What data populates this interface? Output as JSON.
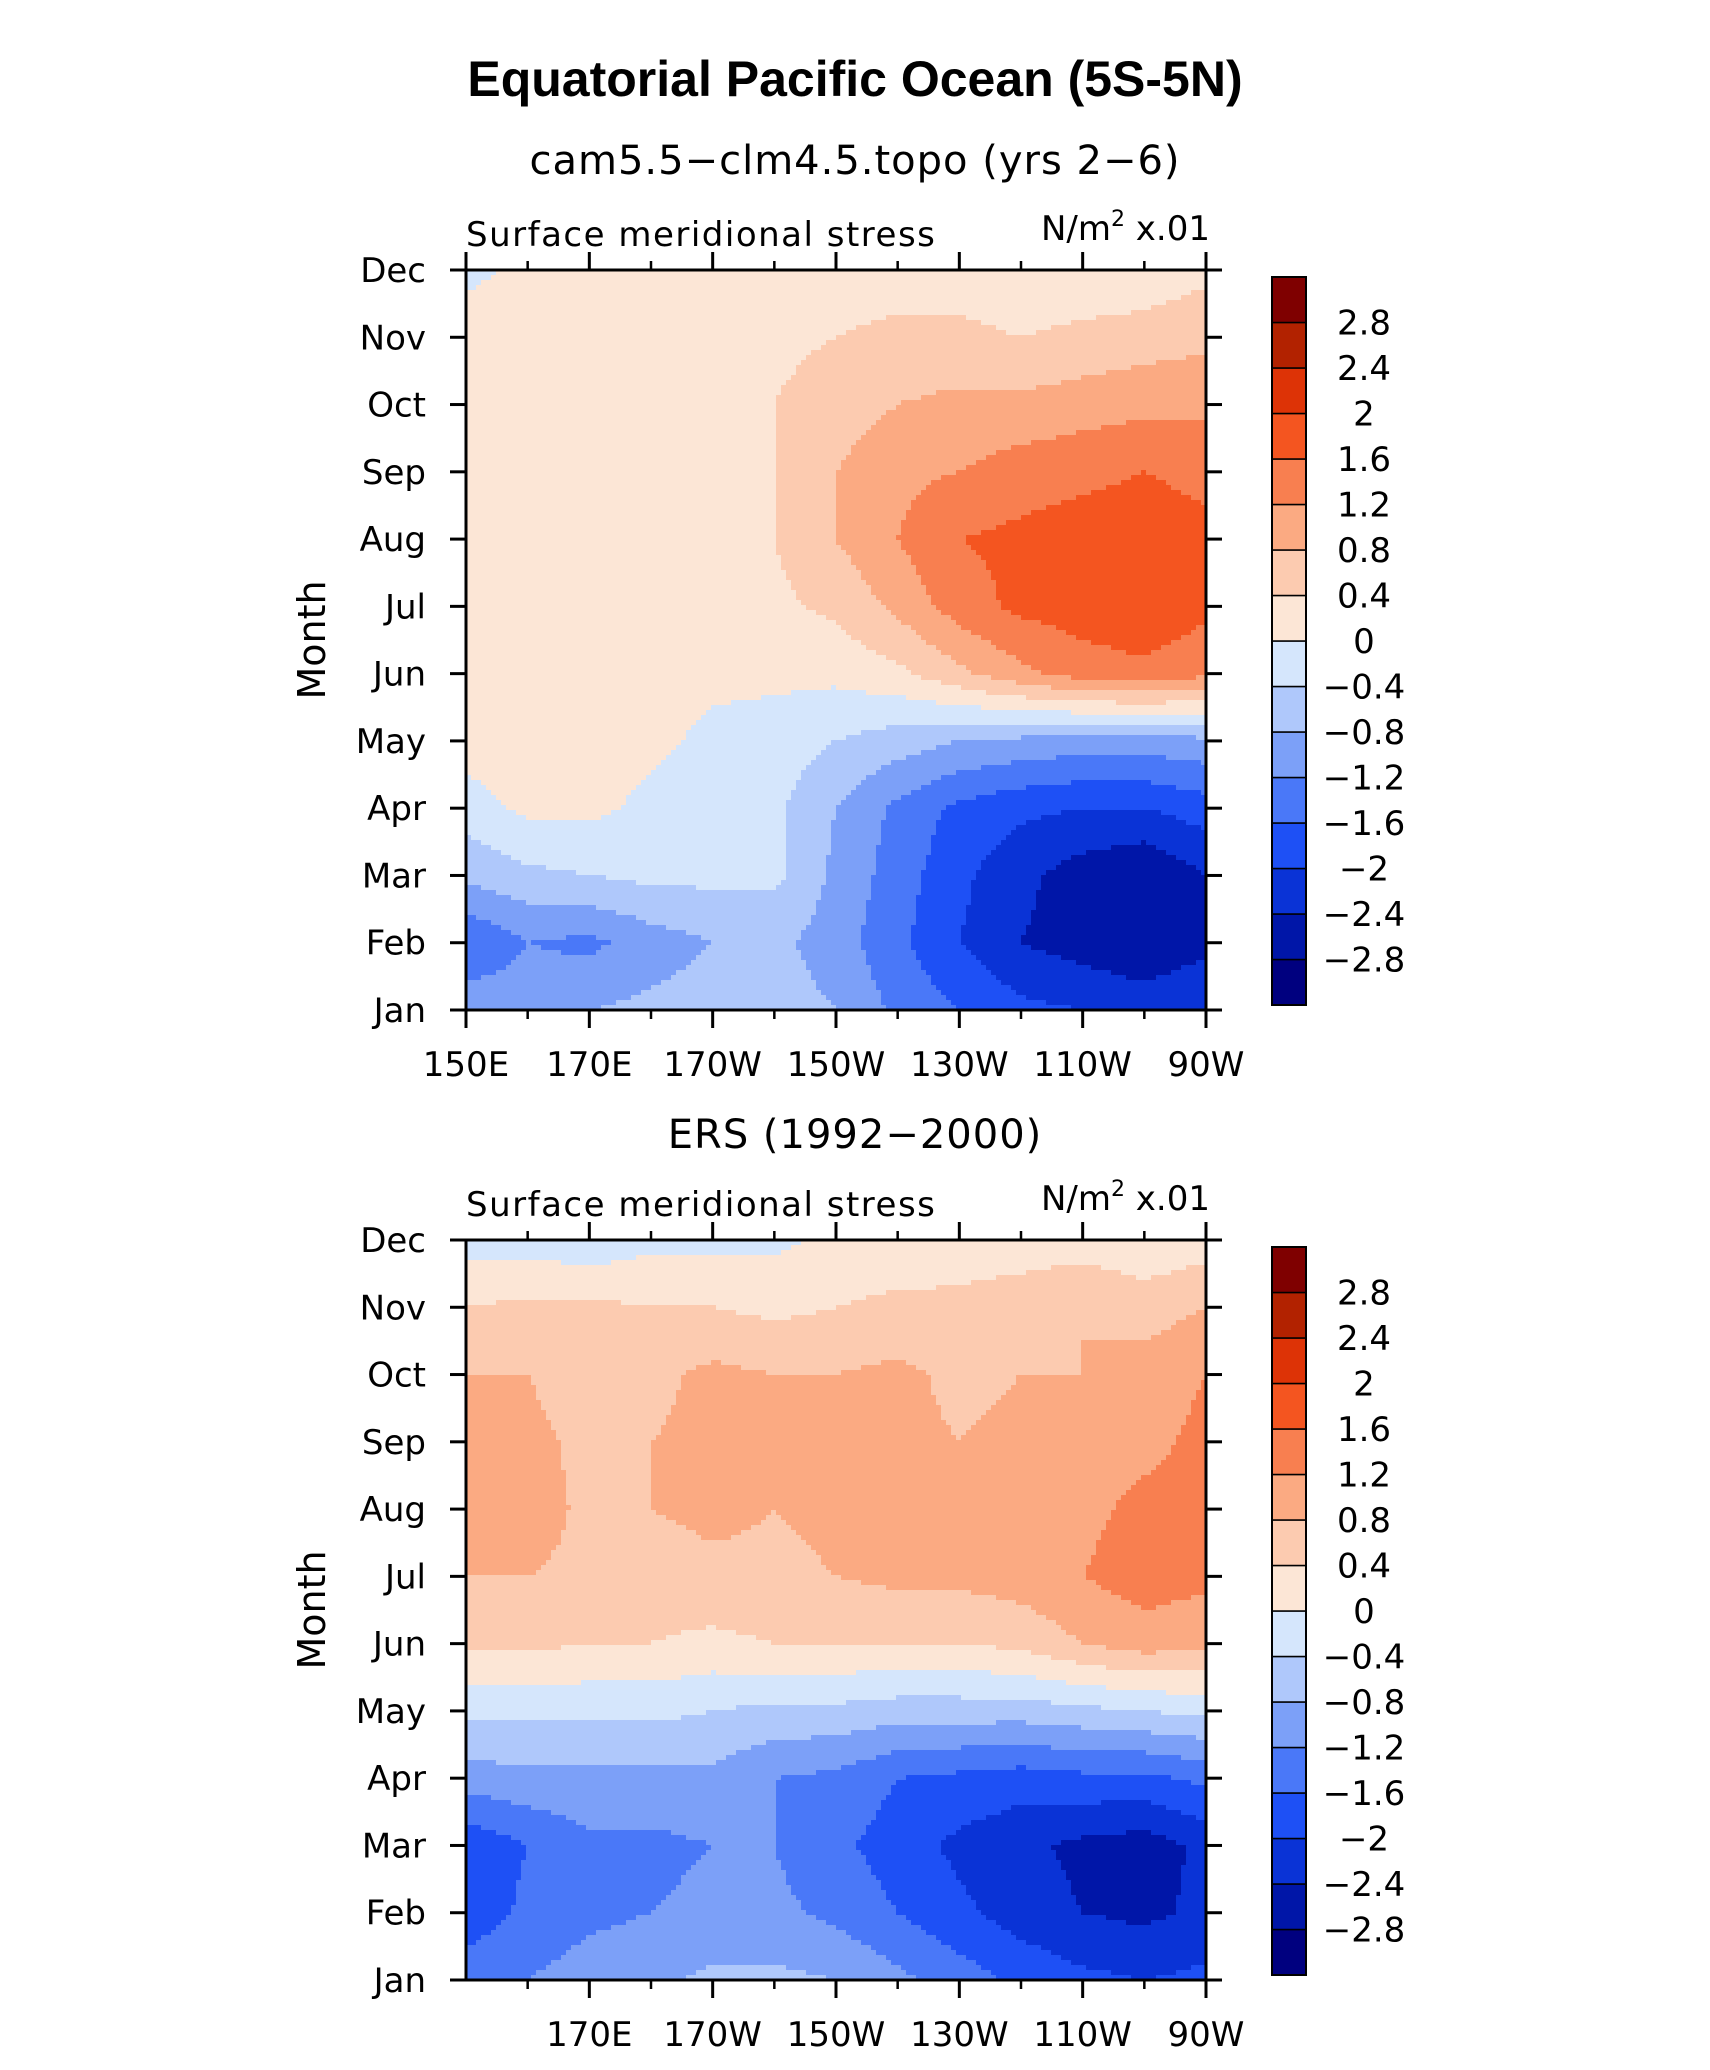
{
  "title": "Equatorial Pacific Ocean (5S-5N)",
  "colorbar": {
    "levels": [
      -3.2,
      -2.8,
      -2.4,
      -2.0,
      -1.6,
      -1.2,
      -0.8,
      -0.4,
      0,
      0.4,
      0.8,
      1.2,
      1.6,
      2.0,
      2.4,
      2.8,
      3.2
    ],
    "labels": [
      "2.8",
      "2.4",
      "2",
      "1.6",
      "1.2",
      "0.8",
      "0.4",
      "0",
      "−0.4",
      "−0.8",
      "−1.2",
      "−1.6",
      "−2",
      "−2.4",
      "−2.8"
    ],
    "colors": [
      "#00007F",
      "#0016A8",
      "#0A33D6",
      "#1E50F5",
      "#4A78F8",
      "#7CA0F8",
      "#AFC8FB",
      "#D5E6FC",
      "#FCE6D6",
      "#FCCBB0",
      "#FBAA82",
      "#F87F50",
      "#F45520",
      "#DD3306",
      "#B22200",
      "#7F0000"
    ]
  },
  "chart_data": [
    {
      "type": "heatmap",
      "title": "cam5.5−clm4.5.topo (yrs 2−6)",
      "left_label": "Surface meridional stress",
      "units_label": "N/m",
      "units_sup": "2",
      "units_suffix": " x.01",
      "ylabel": "Month",
      "y_ticks": [
        "Jan",
        "Feb",
        "Mar",
        "Apr",
        "May",
        "Jun",
        "Jul",
        "Aug",
        "Sep",
        "Oct",
        "Nov",
        "Dec"
      ],
      "x_ticks": [
        "150E",
        "170E",
        "170W",
        "150W",
        "130W",
        "110W",
        "90W"
      ],
      "x_lon": [
        150,
        170,
        190,
        210,
        230,
        250,
        270
      ],
      "xlim": [
        150,
        270
      ],
      "x_nodes": [
        150,
        160,
        170,
        180,
        190,
        200,
        210,
        220,
        230,
        240,
        250,
        260,
        270
      ],
      "z": [
        [
          -0.9,
          -1.0,
          -0.8,
          -0.7,
          -0.6,
          -0.6,
          -0.8,
          -1.3,
          -1.6,
          -1.9,
          -2.0,
          -2.1,
          -2.0
        ],
        [
          -1.6,
          -1.2,
          -1.3,
          -1.0,
          -0.8,
          -0.7,
          -1.0,
          -1.5,
          -2.0,
          -2.4,
          -2.6,
          -2.8,
          -2.5
        ],
        [
          -0.7,
          -0.5,
          -0.4,
          -0.3,
          -0.3,
          -0.3,
          -0.9,
          -1.4,
          -1.9,
          -2.3,
          -2.6,
          -2.8,
          -2.4
        ],
        [
          -0.2,
          0.1,
          0.1,
          -0.1,
          -0.3,
          -0.3,
          -0.8,
          -1.3,
          -1.7,
          -1.9,
          -2.0,
          -2.0,
          -1.8
        ],
        [
          0.2,
          0.3,
          0.2,
          0.1,
          -0.1,
          -0.2,
          -0.4,
          -0.6,
          -0.8,
          -0.9,
          -1.0,
          -1.0,
          -0.9
        ],
        [
          0.3,
          0.3,
          0.2,
          0.2,
          0.1,
          0.1,
          0.1,
          0.3,
          0.7,
          1.1,
          1.4,
          1.5,
          1.3
        ],
        [
          0.4,
          0.3,
          0.2,
          0.2,
          0.2,
          0.3,
          0.5,
          0.9,
          1.4,
          1.7,
          1.8,
          1.9,
          1.7
        ],
        [
          0.4,
          0.3,
          0.2,
          0.2,
          0.2,
          0.4,
          0.8,
          1.2,
          1.6,
          1.7,
          1.8,
          1.8,
          1.7
        ],
        [
          0.4,
          0.3,
          0.2,
          0.2,
          0.2,
          0.4,
          0.8,
          1.1,
          1.2,
          1.4,
          1.5,
          1.6,
          1.5
        ],
        [
          0.3,
          0.2,
          0.2,
          0.2,
          0.2,
          0.4,
          0.6,
          0.8,
          0.9,
          0.9,
          1.0,
          1.1,
          1.1
        ],
        [
          0.2,
          0.2,
          0.2,
          0.2,
          0.2,
          0.3,
          0.4,
          0.5,
          0.5,
          0.4,
          0.5,
          0.6,
          0.7
        ],
        [
          -0.1,
          0.1,
          0.1,
          0.2,
          0.2,
          0.2,
          0.2,
          0.2,
          0.2,
          0.1,
          0.1,
          0.1,
          0.3
        ]
      ]
    },
    {
      "type": "heatmap",
      "title": "ERS (1992−2000)",
      "left_label": "Surface meridional stress",
      "units_label": "N/m",
      "units_sup": "2",
      "units_suffix": " x.01",
      "ylabel": "Month",
      "y_ticks": [
        "Jan",
        "Feb",
        "Mar",
        "Apr",
        "May",
        "Jun",
        "Jul",
        "Aug",
        "Sep",
        "Oct",
        "Nov",
        "Dec"
      ],
      "x_ticks": [
        "170E",
        "170W",
        "150W",
        "130W",
        "110W",
        "90W"
      ],
      "x_lon": [
        170,
        190,
        210,
        230,
        250,
        270
      ],
      "xlim": [
        150,
        270
      ],
      "x_nodes": [
        150,
        160,
        170,
        180,
        190,
        200,
        210,
        220,
        230,
        240,
        250,
        260,
        270
      ],
      "z": [
        [
          -1.3,
          -1.2,
          -1.0,
          -0.9,
          -0.7,
          -0.7,
          -0.8,
          -1.1,
          -1.4,
          -1.7,
          -1.9,
          -2.0,
          -1.9
        ],
        [
          -1.9,
          -1.5,
          -1.3,
          -1.2,
          -1.1,
          -1.1,
          -1.3,
          -1.6,
          -1.9,
          -2.2,
          -2.4,
          -2.5,
          -2.3
        ],
        [
          -1.9,
          -1.6,
          -1.3,
          -1.3,
          -1.2,
          -1.2,
          -1.5,
          -1.8,
          -2.1,
          -2.3,
          -2.5,
          -2.6,
          -2.3
        ],
        [
          -1.0,
          -0.9,
          -0.9,
          -0.9,
          -0.9,
          -1.2,
          -1.3,
          -1.6,
          -1.7,
          -1.8,
          -1.7,
          -1.7,
          -1.5
        ],
        [
          -0.3,
          -0.3,
          -0.3,
          -0.3,
          -0.4,
          -0.5,
          -0.5,
          -0.6,
          -0.6,
          -0.6,
          -0.5,
          -0.4,
          -0.3
        ],
        [
          0.5,
          0.5,
          0.4,
          0.4,
          0.3,
          0.4,
          0.4,
          0.4,
          0.4,
          0.5,
          0.8,
          1.0,
          0.9
        ],
        [
          0.8,
          0.8,
          0.7,
          0.6,
          0.7,
          0.7,
          0.8,
          0.9,
          0.9,
          1.0,
          1.2,
          1.4,
          1.3
        ],
        [
          1.0,
          1.0,
          0.7,
          0.8,
          0.9,
          0.8,
          0.9,
          1.0,
          0.9,
          0.9,
          1.1,
          1.3,
          1.3
        ],
        [
          1.2,
          0.9,
          0.7,
          0.8,
          0.9,
          1.0,
          0.9,
          0.9,
          0.8,
          0.9,
          1.0,
          1.1,
          1.3
        ],
        [
          0.8,
          0.8,
          0.6,
          0.7,
          0.9,
          0.8,
          0.8,
          0.9,
          0.7,
          0.8,
          0.8,
          1.0,
          1.2
        ],
        [
          0.4,
          0.5,
          0.5,
          0.4,
          0.4,
          0.3,
          0.4,
          0.5,
          0.5,
          0.6,
          0.8,
          0.6,
          0.8
        ],
        [
          -0.2,
          -0.2,
          -0.3,
          -0.1,
          -0.1,
          -0.1,
          0.1,
          0.1,
          0.2,
          0.2,
          0.2,
          0.1,
          0.2
        ]
      ]
    }
  ]
}
